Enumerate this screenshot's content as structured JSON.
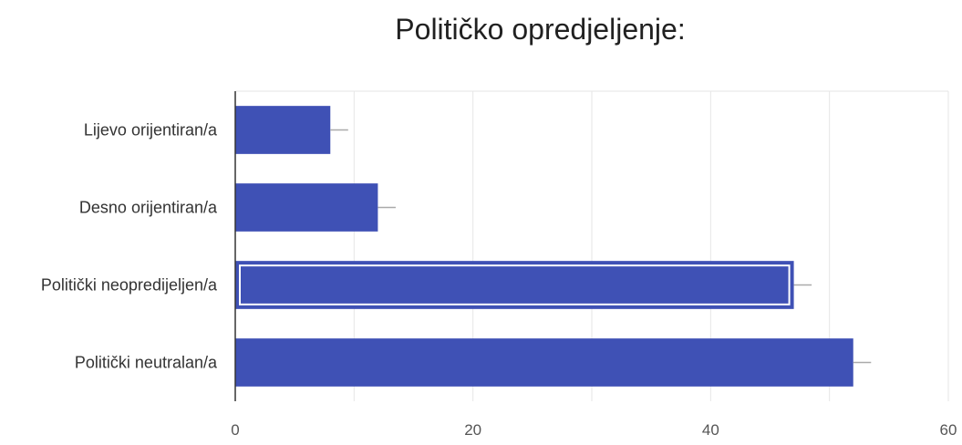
{
  "chart_data": {
    "type": "bar",
    "orientation": "horizontal",
    "title": "Političko opredjeljenje:",
    "categories": [
      "Lijevo orijentiran/a",
      "Desno orijentiran/a",
      "Politički neopredijeljen/a",
      "Politički neutralan/a"
    ],
    "values": [
      8,
      12,
      47,
      52
    ],
    "error_bars": [
      1.5,
      1.5,
      1.5,
      1.5
    ],
    "highlighted_index": 2,
    "xlim": [
      0,
      60
    ],
    "xticks": [
      0,
      20,
      40,
      60
    ],
    "xlabel": "",
    "ylabel": "",
    "grid": true,
    "colors": {
      "bar": "#3f51b5",
      "bar_highlight_outline": "#ffffff",
      "grid": "#e6e6e6",
      "axis": "#333333",
      "error_bar": "#aaaaaa"
    }
  }
}
